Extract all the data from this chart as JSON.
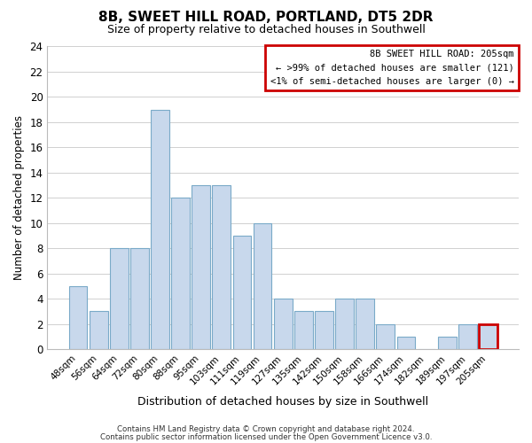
{
  "title": "8B, SWEET HILL ROAD, PORTLAND, DT5 2DR",
  "subtitle": "Size of property relative to detached houses in Southwell",
  "xlabel": "Distribution of detached houses by size in Southwell",
  "ylabel": "Number of detached properties",
  "footer_line1": "Contains HM Land Registry data © Crown copyright and database right 2024.",
  "footer_line2": "Contains public sector information licensed under the Open Government Licence v3.0.",
  "categories": [
    "48sqm",
    "56sqm",
    "64sqm",
    "72sqm",
    "80sqm",
    "88sqm",
    "95sqm",
    "103sqm",
    "111sqm",
    "119sqm",
    "127sqm",
    "135sqm",
    "142sqm",
    "150sqm",
    "158sqm",
    "166sqm",
    "174sqm",
    "182sqm",
    "189sqm",
    "197sqm",
    "205sqm"
  ],
  "values": [
    5,
    3,
    8,
    8,
    19,
    12,
    13,
    13,
    9,
    10,
    4,
    3,
    3,
    4,
    4,
    2,
    1,
    0,
    1,
    2,
    2
  ],
  "bar_color": "#c8d8ec",
  "bar_edge_color": "#7aaac8",
  "highlight_bar_index": 20,
  "highlight_bar_edge_color": "#cc0000",
  "ylim": [
    0,
    24
  ],
  "yticks": [
    0,
    2,
    4,
    6,
    8,
    10,
    12,
    14,
    16,
    18,
    20,
    22,
    24
  ],
  "annotation_title": "8B SWEET HILL ROAD: 205sqm",
  "annotation_line1": "← >99% of detached houses are smaller (121)",
  "annotation_line2": "<1% of semi-detached houses are larger (0) →",
  "annotation_box_edge": "#cc0000",
  "background_color": "#ffffff",
  "grid_color": "#d0d0d0"
}
